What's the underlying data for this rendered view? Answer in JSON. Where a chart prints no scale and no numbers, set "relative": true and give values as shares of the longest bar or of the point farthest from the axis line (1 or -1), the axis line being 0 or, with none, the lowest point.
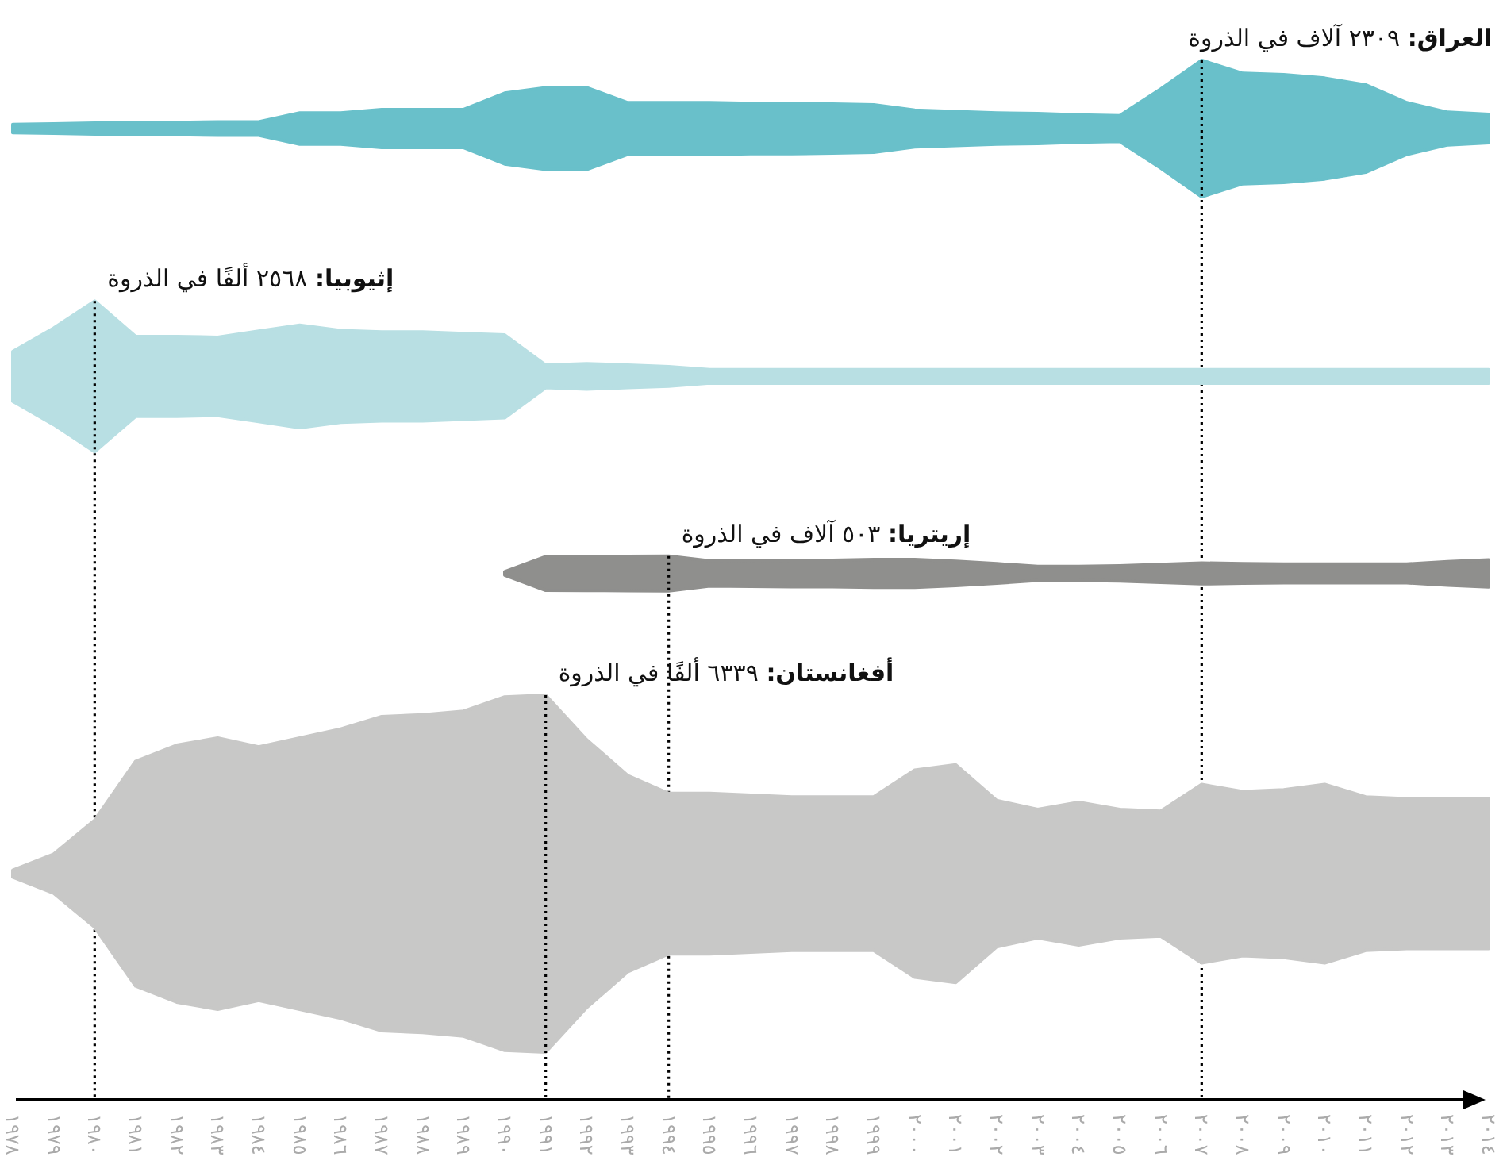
{
  "chart_data": [
    {
      "type": "area",
      "tick_labels": false,
      "xlim": [
        1978,
        2014
      ],
      "x": [
        1978,
        1979,
        1980,
        1981,
        1982,
        1983,
        1984,
        1985,
        1986,
        1987,
        1988,
        1989,
        1990,
        1991,
        1992,
        1993,
        1994,
        1995,
        1996,
        1997,
        1998,
        1999,
        2000,
        2001,
        2002,
        2003,
        2004,
        2005,
        2006,
        2007,
        2008,
        2009,
        2010,
        2011,
        2012,
        2013,
        2014
      ],
      "series": [
        {
          "name": "العراق:",
          "color": "#69c0ca",
          "values": [
            0.06,
            0.07,
            0.08,
            0.08,
            0.09,
            0.1,
            0.1,
            0.23,
            0.23,
            0.28,
            0.28,
            0.28,
            0.52,
            0.6,
            0.6,
            0.38,
            0.38,
            0.38,
            0.37,
            0.37,
            0.36,
            0.35,
            0.27,
            0.25,
            0.23,
            0.22,
            0.2,
            0.19,
            0.58,
            1,
            0.81,
            0.79,
            0.74,
            0.64,
            0.38,
            0.24,
            0.21
          ]
        }
      ],
      "relative": true,
      "annotations": [
        "٢٣٠٩ آلاف في الذروة"
      ],
      "ref_lines": [
        {
          "axis": "x",
          "value": 2007,
          "line_style": "dotted"
        }
      ]
    },
    {
      "type": "area",
      "tick_labels": false,
      "xlim": [
        1978,
        2014
      ],
      "x": [
        1978,
        1979,
        1980,
        1981,
        1982,
        1983,
        1984,
        1985,
        1986,
        1987,
        1988,
        1989,
        1990,
        1991,
        1992,
        1993,
        1994,
        1995,
        1996,
        1997,
        1998,
        1999,
        2000,
        2001,
        2002,
        2003,
        2004,
        2005,
        2006,
        2007,
        2008,
        2009,
        2010,
        2011,
        2012,
        2013,
        2014
      ],
      "series": [
        {
          "name": "إثيوبيا:",
          "color": "#b8dfe3",
          "values": [
            0.33,
            0.64,
            1,
            0.53,
            0.53,
            0.52,
            0.6,
            0.68,
            0.61,
            0.59,
            0.59,
            0.57,
            0.55,
            0.15,
            0.17,
            0.15,
            0.13,
            0.09,
            0.09,
            0.09,
            0.09,
            0.09,
            0.09,
            0.09,
            0.09,
            0.09,
            0.09,
            0.09,
            0.09,
            0.09,
            0.09,
            0.09,
            0.09,
            0.09,
            0.09,
            0.09,
            0.09
          ]
        }
      ],
      "relative": true,
      "annotations": [
        "٢٥٦٨ ألفًا في الذروة"
      ],
      "ref_lines": [
        {
          "axis": "x",
          "value": 1980,
          "line_style": "dotted"
        }
      ]
    },
    {
      "type": "area",
      "tick_labels": false,
      "xlim": [
        1978,
        2014
      ],
      "x": [
        1990,
        1991,
        1992,
        1993,
        1994,
        1995,
        1996,
        1997,
        1998,
        1999,
        2000,
        2001,
        2002,
        2003,
        2004,
        2005,
        2006,
        2007,
        2008,
        2009,
        2010,
        2011,
        2012,
        2013,
        2014
      ],
      "series": [
        {
          "name": "إريتريا:",
          "color": "#8f8f8d",
          "values": [
            0.1,
            0.97,
            0.98,
            0.99,
            1,
            0.72,
            0.74,
            0.76,
            0.76,
            0.8,
            0.8,
            0.7,
            0.56,
            0.4,
            0.4,
            0.44,
            0.52,
            0.6,
            0.56,
            0.54,
            0.54,
            0.54,
            0.54,
            0.68,
            0.78
          ]
        }
      ],
      "relative": true,
      "annotations": [
        "٥٠٣ آلاف في الذروة"
      ],
      "ref_lines": [
        {
          "axis": "x",
          "value": 1994,
          "line_style": "dotted"
        }
      ]
    },
    {
      "type": "area",
      "xlim": [
        1978,
        2014
      ],
      "x": [
        1978,
        1979,
        1980,
        1981,
        1982,
        1983,
        1984,
        1985,
        1986,
        1987,
        1988,
        1989,
        1990,
        1991,
        1992,
        1993,
        1994,
        1995,
        1996,
        1997,
        1998,
        1999,
        2000,
        2001,
        2002,
        2003,
        2004,
        2005,
        2006,
        2007,
        2008,
        2009,
        2010,
        2011,
        2012,
        2013,
        2014
      ],
      "xticks": [
        {
          "value": 1978,
          "label": "١٩٧٨"
        },
        {
          "value": 1979,
          "label": "١٩٧٩"
        },
        {
          "value": 1980,
          "label": "١٩٨٠"
        },
        {
          "value": 1981,
          "label": "١٩٨١"
        },
        {
          "value": 1982,
          "label": "١٩٨٢"
        },
        {
          "value": 1983,
          "label": "١٩٨٣"
        },
        {
          "value": 1984,
          "label": "١٩٨٤"
        },
        {
          "value": 1985,
          "label": "١٩٨٥"
        },
        {
          "value": 1986,
          "label": "١٩٨٦"
        },
        {
          "value": 1987,
          "label": "١٩٨٧"
        },
        {
          "value": 1988,
          "label": "١٩٨٨"
        },
        {
          "value": 1989,
          "label": "١٩٨٩"
        },
        {
          "value": 1990,
          "label": "١٩٩٠"
        },
        {
          "value": 1991,
          "label": "١٩٩١"
        },
        {
          "value": 1992,
          "label": "١٩٩٢"
        },
        {
          "value": 1993,
          "label": "١٩٩٣"
        },
        {
          "value": 1994,
          "label": "١٩٩٤"
        },
        {
          "value": 1995,
          "label": "١٩٩٥"
        },
        {
          "value": 1996,
          "label": "١٩٩٦"
        },
        {
          "value": 1997,
          "label": "١٩٩٧"
        },
        {
          "value": 1998,
          "label": "١٩٩٨"
        },
        {
          "value": 1999,
          "label": "١٩٩٩"
        },
        {
          "value": 2000,
          "label": "٢٠٠٠"
        },
        {
          "value": 2001,
          "label": "٢٠٠١"
        },
        {
          "value": 2002,
          "label": "٢٠٠٢"
        },
        {
          "value": 2003,
          "label": "٢٠٠٣"
        },
        {
          "value": 2004,
          "label": "٢٠٠٤"
        },
        {
          "value": 2005,
          "label": "٢٠٠٥"
        },
        {
          "value": 2006,
          "label": "٢٠٠٦"
        },
        {
          "value": 2007,
          "label": "٢٠٠٧"
        },
        {
          "value": 2008,
          "label": "٢٠٠٨"
        },
        {
          "value": 2009,
          "label": "٢٠٠٩"
        },
        {
          "value": 2010,
          "label": "٢٠١٠"
        },
        {
          "value": 2011,
          "label": "٢٠١١"
        },
        {
          "value": 2012,
          "label": "٢٠١٢"
        },
        {
          "value": 2013,
          "label": "٢٠١٣"
        },
        {
          "value": 2014,
          "label": "٢٠١٤"
        }
      ],
      "series": [
        {
          "name": "أفغانستان:",
          "color": "#c8c8c7",
          "values": [
            0.02,
            0.11,
            0.3,
            0.63,
            0.72,
            0.76,
            0.71,
            0.76,
            0.81,
            0.88,
            0.89,
            0.91,
            0.99,
            1,
            0.75,
            0.55,
            0.45,
            0.45,
            0.44,
            0.43,
            0.43,
            0.43,
            0.58,
            0.61,
            0.41,
            0.36,
            0.4,
            0.36,
            0.35,
            0.5,
            0.46,
            0.47,
            0.5,
            0.43,
            0.42,
            0.42,
            0.42
          ]
        }
      ],
      "relative": true,
      "annotations": [
        "٦٣٣٩ ألفًا في الذروة"
      ],
      "ref_lines": [
        {
          "axis": "x",
          "value": 1991,
          "line_style": "dotted"
        }
      ]
    }
  ]
}
